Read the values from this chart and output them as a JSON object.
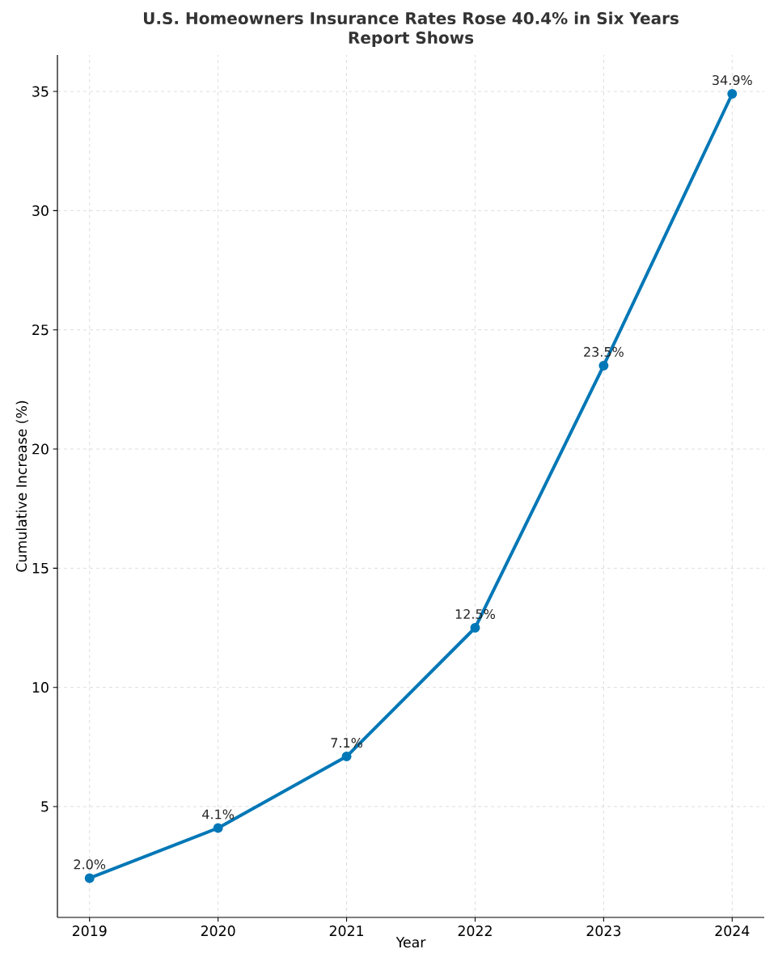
{
  "chart_data": {
    "type": "line",
    "title": "U.S. Homeowners Insurance Rates Rose 40.4% in Six Years",
    "subtitle": "Report Shows",
    "xlabel": "Year",
    "ylabel": "Cumulative Increase (%)",
    "x": [
      2019,
      2020,
      2021,
      2022,
      2023,
      2024
    ],
    "series": [
      {
        "color": "#0077b6",
        "values": [
          2.0,
          4.1,
          7.1,
          12.5,
          23.5,
          34.9
        ],
        "value_labels": [
          "2.0%",
          "4.1%",
          "7.1%",
          "12.5%",
          "23.5%",
          "34.9%"
        ]
      }
    ],
    "xlim": [
      2018.75,
      2024.25
    ],
    "xticks": [
      2019,
      2020,
      2021,
      2022,
      2023,
      2024
    ],
    "ylim": [
      0.35,
      36.53
    ],
    "yticks": [
      5,
      10,
      15,
      20,
      25,
      30,
      35
    ],
    "grid": true,
    "marker": "circle",
    "line_style": "solid"
  }
}
